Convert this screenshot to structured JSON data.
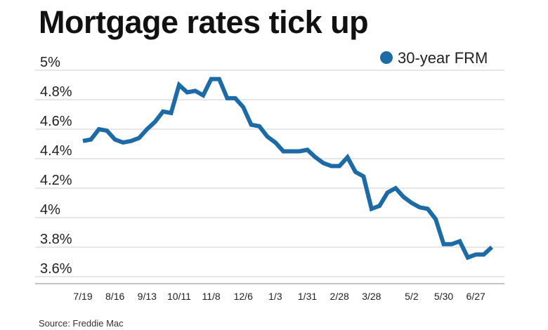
{
  "title": "Mortgage rates tick up",
  "source": "Source: Freddie Mac",
  "colors": {
    "series": "#1c6aa6",
    "grid": "#cccccc",
    "text": "#222222"
  },
  "chart_data": {
    "type": "line",
    "title": "Mortgage rates tick up",
    "xlabel": "",
    "ylabel": "",
    "ylim": [
      3.6,
      5.0
    ],
    "y_ticks": [
      3.6,
      3.8,
      4.0,
      4.2,
      4.4,
      4.6,
      4.8,
      5.0
    ],
    "y_tick_labels": [
      "3.6%",
      "3.8%",
      "4%",
      "4.2%",
      "4.4%",
      "4.6%",
      "4.8%",
      "5%"
    ],
    "x_tick_labels": [
      {
        "label": "7/19",
        "index": 0
      },
      {
        "label": "8/16",
        "index": 4
      },
      {
        "label": "9/13",
        "index": 8
      },
      {
        "label": "10/11",
        "index": 12
      },
      {
        "label": "11/8",
        "index": 16
      },
      {
        "label": "12/6",
        "index": 20
      },
      {
        "label": "1/3",
        "index": 24
      },
      {
        "label": "1/31",
        "index": 28
      },
      {
        "label": "2/28",
        "index": 32
      },
      {
        "label": "3/28",
        "index": 36
      },
      {
        "label": "5/2",
        "index": 41
      },
      {
        "label": "5/30",
        "index": 45
      },
      {
        "label": "6/27",
        "index": 49
      }
    ],
    "grid": "horizontal",
    "legend": "top-right",
    "series": [
      {
        "name": "30-year FRM",
        "values": [
          4.52,
          4.53,
          4.6,
          4.59,
          4.53,
          4.51,
          4.52,
          4.54,
          4.6,
          4.65,
          4.72,
          4.71,
          4.9,
          4.85,
          4.86,
          4.83,
          4.94,
          4.94,
          4.81,
          4.81,
          4.75,
          4.63,
          4.62,
          4.55,
          4.51,
          4.45,
          4.45,
          4.45,
          4.46,
          4.41,
          4.37,
          4.35,
          4.35,
          4.41,
          4.31,
          4.28,
          4.06,
          4.08,
          4.17,
          4.2,
          4.14,
          4.1,
          4.07,
          4.06,
          3.99,
          3.82,
          3.82,
          3.84,
          3.73,
          3.75,
          3.75,
          3.8
        ]
      }
    ]
  }
}
